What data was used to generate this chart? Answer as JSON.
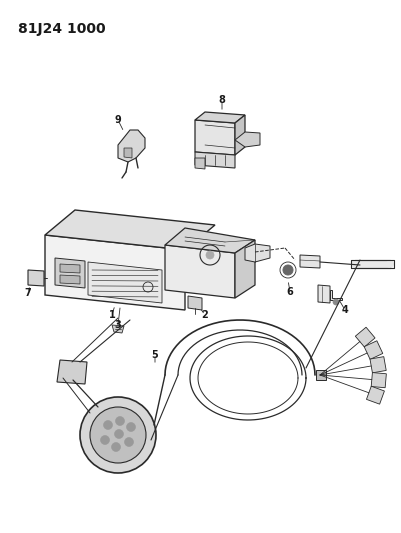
{
  "title_text": "81J24 1000",
  "bg_color": "#ffffff",
  "line_color": "#2a2a2a",
  "label_color": "#1a1a1a",
  "label_fontsize": 7.0,
  "title_fontsize": 10
}
